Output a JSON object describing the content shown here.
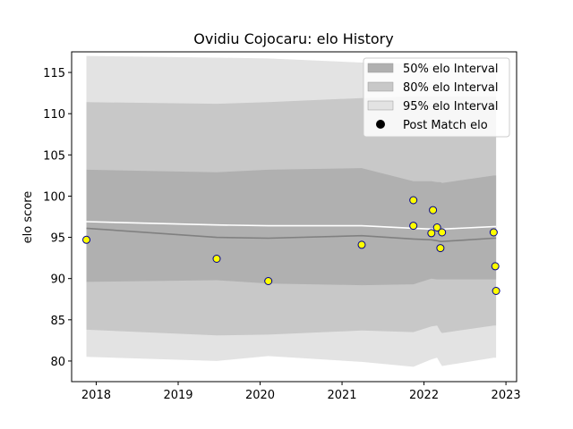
{
  "chart_data": {
    "type": "area",
    "title": "Ovidiu Cojocaru: elo History",
    "xlabel": "",
    "ylabel": "elo score",
    "x_ticks": [
      "2018",
      "2019",
      "2020",
      "2021",
      "2022",
      "2023"
    ],
    "x_tick_values": [
      2018,
      2019,
      2020,
      2021,
      2022,
      2023
    ],
    "y_ticks": [
      "80",
      "85",
      "90",
      "95",
      "100",
      "105",
      "110",
      "115"
    ],
    "y_tick_values": [
      80,
      85,
      90,
      95,
      100,
      105,
      110,
      115
    ],
    "xlim": [
      2017.7,
      2023.13
    ],
    "ylim": [
      77.5,
      117.5
    ],
    "grid": false,
    "legend_position": "top-right",
    "legend": [
      {
        "label": "50% elo Interval",
        "kind": "band",
        "color": "#b0b0b0"
      },
      {
        "label": "80% elo Interval",
        "kind": "band",
        "color": "#c8c8c8"
      },
      {
        "label": "95% elo Interval",
        "kind": "band",
        "color": "#e3e3e3"
      },
      {
        "label": "Post Match elo",
        "kind": "marker",
        "color": "#000000"
      }
    ],
    "band_x": [
      2017.88,
      2019.47,
      2020.1,
      2021.24,
      2021.87,
      2022.09,
      2022.16,
      2022.2,
      2022.22,
      2022.85,
      2022.88
    ],
    "bands": [
      {
        "name": "95% elo Interval",
        "color": "#e3e3e3",
        "upper": [
          117.0,
          116.8,
          116.7,
          116.2,
          116.0,
          115.8,
          115.8,
          115.7,
          115.6,
          115.6,
          115.6
        ],
        "lower": [
          80.5,
          80.0,
          80.6,
          79.9,
          79.3,
          80.2,
          80.4,
          79.7,
          79.4,
          80.4,
          80.4
        ]
      },
      {
        "name": "80% elo Interval",
        "color": "#c8c8c8",
        "upper": [
          111.4,
          111.2,
          111.4,
          111.9,
          112.1,
          112.1,
          112.1,
          112.1,
          112.1,
          112.1,
          112.1
        ],
        "lower": [
          83.8,
          83.1,
          83.2,
          83.7,
          83.5,
          84.2,
          84.3,
          83.6,
          83.4,
          84.3,
          84.3
        ]
      },
      {
        "name": "50% elo Interval",
        "color": "#b0b0b0",
        "upper": [
          103.2,
          102.9,
          103.2,
          103.4,
          101.8,
          101.8,
          101.7,
          101.7,
          101.6,
          102.5,
          102.5
        ],
        "lower": [
          89.6,
          89.8,
          89.4,
          89.2,
          89.3,
          90.0,
          89.9,
          89.9,
          89.9,
          89.9,
          89.9
        ]
      }
    ],
    "lines": [
      {
        "color": "#808080",
        "x": [
          2017.88,
          2019.47,
          2020.1,
          2021.24,
          2021.87,
          2022.09,
          2022.16,
          2022.2,
          2022.22,
          2022.85,
          2022.88
        ],
        "y": [
          96.1,
          95.0,
          94.9,
          95.2,
          94.8,
          94.7,
          94.6,
          94.5,
          94.5,
          94.9,
          94.9
        ]
      },
      {
        "color": "#ffffff",
        "x": [
          2017.88,
          2019.47,
          2020.1,
          2021.24,
          2021.87,
          2022.09,
          2022.16,
          2022.2,
          2022.22,
          2022.85,
          2022.88
        ],
        "y": [
          96.9,
          96.5,
          96.4,
          96.4,
          96.1,
          96.0,
          96.0,
          96.0,
          96.0,
          96.3,
          96.3
        ]
      }
    ],
    "points": {
      "name": "Post Match elo",
      "fill": "#ffff00",
      "stroke": "#00008b",
      "x": [
        2017.88,
        2019.47,
        2020.1,
        2021.24,
        2021.87,
        2021.87,
        2022.09,
        2022.11,
        2022.16,
        2022.2,
        2022.22,
        2022.85,
        2022.87,
        2022.88
      ],
      "y": [
        94.7,
        92.4,
        89.7,
        94.1,
        99.5,
        96.4,
        95.5,
        98.3,
        96.2,
        93.7,
        95.6,
        95.6,
        91.5,
        88.5
      ]
    }
  }
}
